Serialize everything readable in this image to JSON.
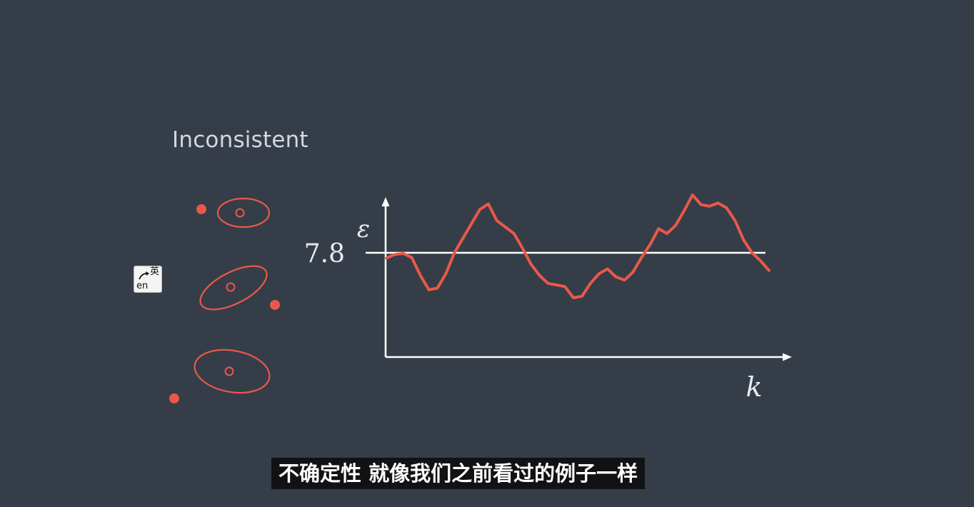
{
  "slide": {
    "heading": "Inconsistent"
  },
  "ime_indicator": {
    "top_char": "英",
    "bottom_text": "en"
  },
  "subtitle": "不确定性 就像我们之前看过的例子一样",
  "colors": {
    "background": "#353d48",
    "accent": "#e8594a",
    "axis": "#ffffff",
    "text": "#d4d8dd"
  },
  "chart_data": {
    "type": "line",
    "ylabel": "ε",
    "xlabel": "k",
    "threshold": {
      "value": 7.8,
      "label": "7.8"
    },
    "ylim": [
      5.0,
      10.0
    ],
    "series": [
      {
        "values": [
          7.63,
          7.75,
          7.78,
          7.65,
          7.1,
          6.65,
          6.7,
          7.15,
          7.8,
          8.25,
          8.7,
          9.15,
          9.32,
          8.8,
          8.6,
          8.4,
          7.95,
          7.45,
          7.1,
          6.85,
          6.8,
          6.75,
          6.4,
          6.45,
          6.85,
          7.15,
          7.3,
          7.05,
          6.95,
          7.2,
          7.65,
          8.05,
          8.55,
          8.4,
          8.65,
          9.1,
          9.6,
          9.3,
          9.25,
          9.35,
          9.2,
          8.8,
          8.2,
          7.8,
          7.55,
          7.25
        ]
      }
    ]
  },
  "ellipse_diagrams": [
    {
      "outlier": "left"
    },
    {
      "outlier": "right"
    },
    {
      "outlier": "left"
    }
  ]
}
